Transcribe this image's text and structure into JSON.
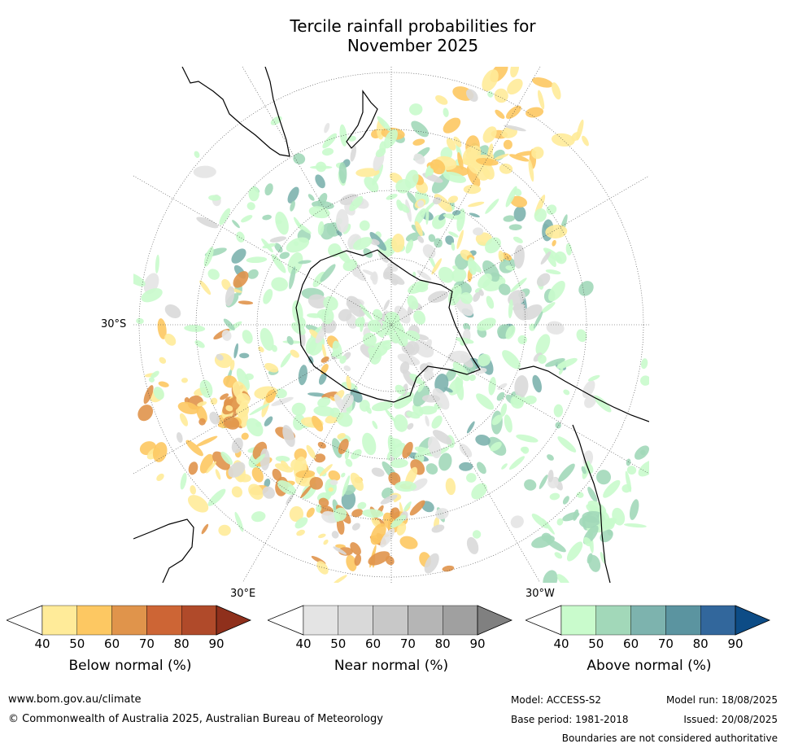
{
  "title": {
    "line1": "Tercile rainfall probabilities for",
    "line2": "November 2025"
  },
  "map": {
    "lat_label": "30°S",
    "lon_labels": {
      "east": "30°E",
      "west": "30°W"
    },
    "colors": {
      "below": [
        "#ffffff",
        "#ffeb99",
        "#fdc862",
        "#e0944b",
        "#cd6535",
        "#b04a2a",
        "#8f301c"
      ],
      "near": [
        "#ffffff",
        "#e4e4e4",
        "#d9d9d9",
        "#c8c8c8",
        "#b5b5b5",
        "#a0a0a0",
        "#808080"
      ],
      "above": [
        "#ffffff",
        "#c9fbcc",
        "#a2d8b9",
        "#7db3ae",
        "#5b94a0",
        "#32679c",
        "#0d4c86"
      ]
    }
  },
  "colorbars": [
    {
      "label": "Below normal (%)",
      "ticks": [
        "40",
        "50",
        "60",
        "70",
        "80",
        "90"
      ]
    },
    {
      "label": "Near normal (%)",
      "ticks": [
        "40",
        "50",
        "60",
        "70",
        "80",
        "90"
      ]
    },
    {
      "label": "Above normal (%)",
      "ticks": [
        "40",
        "50",
        "60",
        "70",
        "80",
        "90"
      ]
    }
  ],
  "footer": {
    "website": "www.bom.gov.au/climate",
    "copyright": "© Commonwealth of Australia 2025, Australian Bureau of Meteorology",
    "model": "Model: ACCESS-S2",
    "base_period": "Base period: 1981-2018",
    "model_run": "Model run: 18/08/2025",
    "issued": "Issued: 20/08/2025",
    "disclaimer": "Boundaries are not considered authoritative"
  }
}
